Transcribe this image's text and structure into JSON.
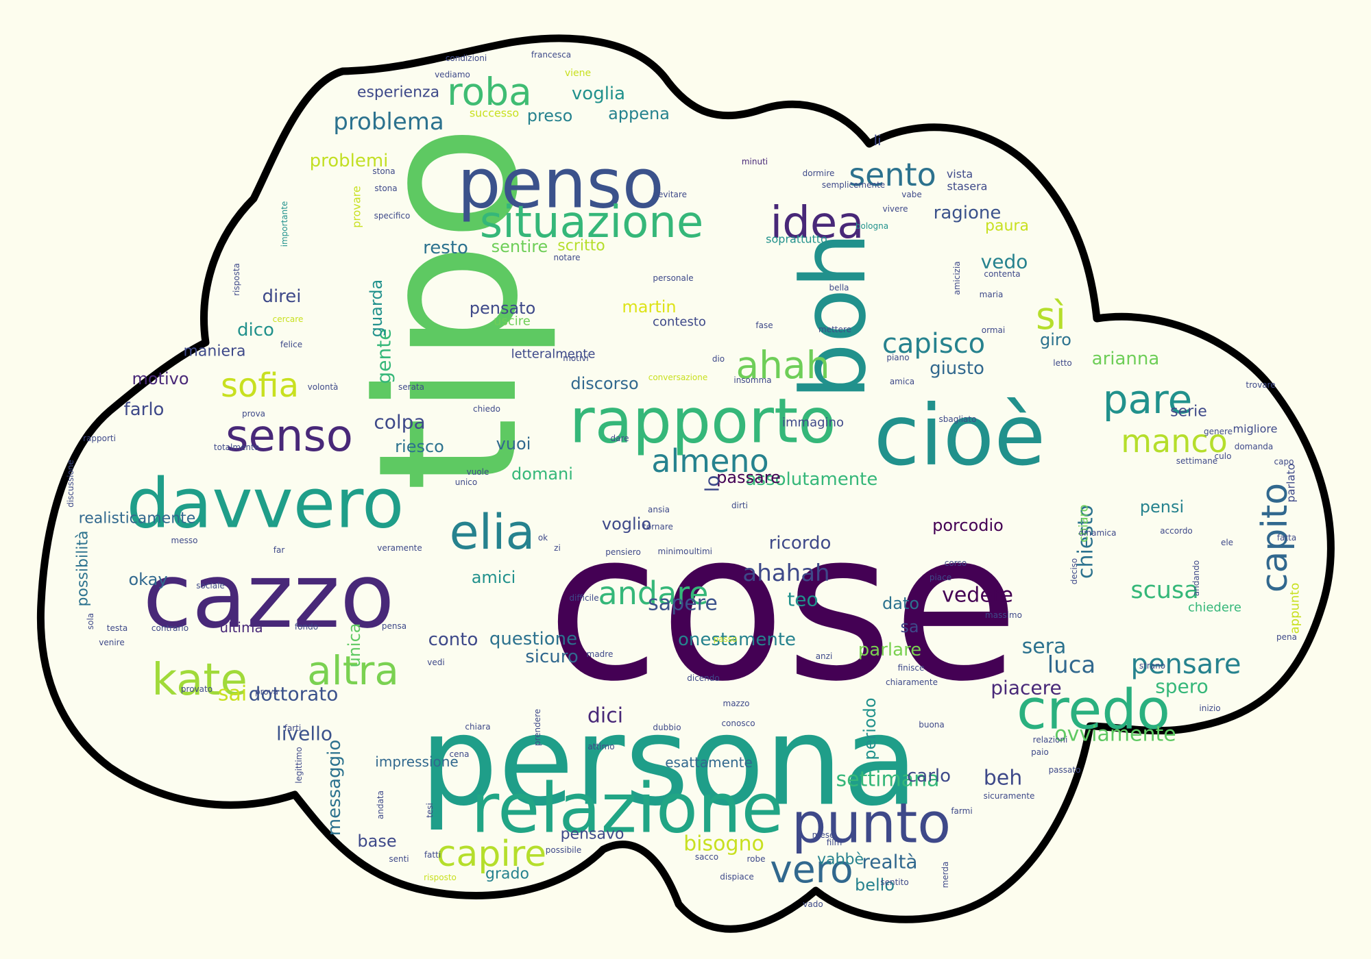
{
  "palette": {
    "background": "#fdfdee",
    "cloud_fill": "#fcfdf0",
    "cloud_outline": "#000000",
    "viridis": [
      "#440154",
      "#482878",
      "#3e4989",
      "#31688e",
      "#26828e",
      "#1f9e89",
      "#35b779",
      "#6ece58",
      "#b5de2b",
      "#fde725"
    ]
  },
  "words": [
    {
      "text": "cose",
      "color": "#440154"
    },
    {
      "text": "tipo",
      "color": "#5ec962"
    },
    {
      "text": "persona",
      "color": "#1f9e89"
    },
    {
      "text": "cazzo",
      "color": "#482878"
    },
    {
      "text": "boh",
      "color": "#21918c"
    },
    {
      "text": "cioè",
      "color": "#21918c"
    },
    {
      "text": "penso",
      "color": "#3b528b"
    },
    {
      "text": "davvero",
      "color": "#1f9e89"
    },
    {
      "text": "relazione",
      "color": "#21a585"
    },
    {
      "text": "rapporto",
      "color": "#35b779"
    },
    {
      "text": "senso",
      "color": "#482878"
    },
    {
      "text": "situazione",
      "color": "#35b779"
    },
    {
      "text": "credo",
      "color": "#2ab07f"
    },
    {
      "text": "punto",
      "color": "#3e4989"
    },
    {
      "text": "idea",
      "color": "#482878"
    },
    {
      "text": "elia",
      "color": "#26828e"
    },
    {
      "text": "kate",
      "color": "#a0da39"
    },
    {
      "text": "altra",
      "color": "#7ad151"
    },
    {
      "text": "andare",
      "color": "#35b779"
    },
    {
      "text": "pare",
      "color": "#21918c"
    },
    {
      "text": "almeno",
      "color": "#26828e"
    },
    {
      "text": "capito",
      "color": "#31688e"
    },
    {
      "text": "manco",
      "color": "#b5de2b"
    },
    {
      "text": "roba",
      "color": "#3fbc73"
    },
    {
      "text": "sento",
      "color": "#2c728e"
    },
    {
      "text": "ahah",
      "color": "#6ece58"
    },
    {
      "text": "sofia",
      "color": "#c8e020"
    },
    {
      "text": "sì",
      "color": "#b5de2b"
    },
    {
      "text": "capire",
      "color": "#b5de2b"
    },
    {
      "text": "vero",
      "color": "#31688e"
    },
    {
      "text": "ahahah",
      "color": "#3e4989"
    },
    {
      "text": "capisco",
      "color": "#26828e"
    },
    {
      "text": "pensare",
      "color": "#26828e"
    },
    {
      "text": "scusa",
      "color": "#35b779"
    },
    {
      "text": "problema",
      "color": "#2c728e"
    },
    {
      "text": "problemi",
      "color": "#c2df23"
    },
    {
      "text": "ragione",
      "color": "#3b528b"
    },
    {
      "text": "martin",
      "color": "#dde318"
    },
    {
      "text": "vedere",
      "color": "#440154"
    },
    {
      "text": "sapere",
      "color": "#3b528b"
    },
    {
      "text": "sera",
      "color": "#2c728e"
    },
    {
      "text": "luca",
      "color": "#31688e"
    },
    {
      "text": "dici",
      "color": "#482878"
    },
    {
      "text": "settimana",
      "color": "#35b779"
    },
    {
      "text": "ovviamente",
      "color": "#5ec962"
    },
    {
      "text": "bisogno",
      "color": "#c8e020"
    },
    {
      "text": "vedo",
      "color": "#26828e"
    },
    {
      "text": "arianna",
      "color": "#6ece58"
    },
    {
      "text": "voglia",
      "color": "#21918c"
    },
    {
      "text": "colpa",
      "color": "#3e4989"
    },
    {
      "text": "chiesto",
      "color": "#2c728e"
    },
    {
      "text": "spero",
      "color": "#35b779"
    },
    {
      "text": "realtà",
      "color": "#31688e"
    },
    {
      "text": "piacere",
      "color": "#482878"
    },
    {
      "text": "livello",
      "color": "#3b528b"
    },
    {
      "text": "dottorato",
      "color": "#3b528b"
    },
    {
      "text": "questione",
      "color": "#2c728e"
    },
    {
      "text": "conto",
      "color": "#3e4989"
    },
    {
      "text": "sai",
      "color": "#c8e020"
    },
    {
      "text": "parlare",
      "color": "#7ad151"
    },
    {
      "text": "onestamente",
      "color": "#26828e"
    },
    {
      "text": "sicuro",
      "color": "#31688e"
    },
    {
      "text": "amici",
      "color": "#21918c"
    },
    {
      "text": "okay",
      "color": "#31688e"
    },
    {
      "text": "voglio",
      "color": "#3e4989"
    },
    {
      "text": "ricordo",
      "color": "#3e4989"
    },
    {
      "text": "porcodio",
      "color": "#440154"
    },
    {
      "text": "pensi",
      "color": "#26828e"
    },
    {
      "text": "assolutamente",
      "color": "#35b779"
    },
    {
      "text": "passare",
      "color": "#440154"
    },
    {
      "text": "domani",
      "color": "#35b779"
    },
    {
      "text": "vuoi",
      "color": "#31688e"
    },
    {
      "text": "riesco",
      "color": "#2c728e"
    },
    {
      "text": "farlo",
      "color": "#3e4989"
    },
    {
      "text": "motivo",
      "color": "#482878"
    },
    {
      "text": "dico",
      "color": "#21918c"
    },
    {
      "text": "direi",
      "color": "#3e4989"
    },
    {
      "text": "gente",
      "color": "#35b779"
    },
    {
      "text": "resto",
      "color": "#2c728e"
    },
    {
      "text": "sentire",
      "color": "#6ece58"
    },
    {
      "text": "scritto",
      "color": "#b5de2b"
    },
    {
      "text": "preso",
      "color": "#26828e"
    },
    {
      "text": "appena",
      "color": "#26828e"
    },
    {
      "text": "esperienza",
      "color": "#3e4989"
    },
    {
      "text": "pensato",
      "color": "#3e4989"
    },
    {
      "text": "giusto",
      "color": "#31688e"
    },
    {
      "text": "discorso",
      "color": "#31688e"
    },
    {
      "text": "giro",
      "color": "#2c728e"
    },
    {
      "text": "paura",
      "color": "#c8e020"
    },
    {
      "text": "lo",
      "color": "#3e4989"
    },
    {
      "text": "dato",
      "color": "#2c728e"
    },
    {
      "text": "teo",
      "color": "#21918c"
    },
    {
      "text": "beh",
      "color": "#3e4989"
    },
    {
      "text": "carlo",
      "color": "#3e4989"
    },
    {
      "text": "pensavo",
      "color": "#3e4989"
    },
    {
      "text": "grado",
      "color": "#26828e"
    },
    {
      "text": "base",
      "color": "#3e4989"
    },
    {
      "text": "maniera",
      "color": "#3e4989"
    },
    {
      "text": "unica",
      "color": "#5ec962"
    },
    {
      "text": "messaggio",
      "color": "#2c728e"
    },
    {
      "text": "vabbè",
      "color": "#26828e"
    },
    {
      "text": "bello",
      "color": "#26828e"
    },
    {
      "text": "guarda",
      "color": "#21918c"
    },
    {
      "text": "realisticamente",
      "color": "#31688e"
    },
    {
      "text": "possibilità",
      "color": "#2c728e"
    },
    {
      "text": "ultima",
      "color": "#482878"
    },
    {
      "text": "sa",
      "color": "#3e4989"
    },
    {
      "text": "impressione",
      "color": "#31688e"
    },
    {
      "text": "esattamente",
      "color": "#31688e"
    },
    {
      "text": "periodo",
      "color": "#21918c"
    },
    {
      "text": "li",
      "color": "#3e4989"
    },
    {
      "text": "serie",
      "color": "#3e4989"
    },
    {
      "text": "appunto",
      "color": "#c8e020"
    },
    {
      "text": "chiedere",
      "color": "#35b779"
    },
    {
      "text": "contesto",
      "color": "#3e4989"
    },
    {
      "text": "uscire",
      "color": "#6ece58"
    },
    {
      "text": "letteralmente",
      "color": "#3e4989"
    },
    {
      "text": "immagino",
      "color": "#3e4989"
    },
    {
      "text": "migliore",
      "color": "#3e4989"
    },
    {
      "text": "soprattutto",
      "color": "#21918c"
    },
    {
      "text": "parlato",
      "color": "#3e4989"
    },
    {
      "text": "successo",
      "color": "#c8e020"
    },
    {
      "text": "chiaro",
      "color": "#6ece58"
    },
    {
      "text": "vista",
      "color": "#3e4989"
    },
    {
      "text": "stasera",
      "color": "#3e4989"
    },
    {
      "text": "minuti",
      "color": "#482878"
    },
    {
      "text": "semplicemente",
      "color": "#3e4989"
    },
    {
      "text": "dormire",
      "color": "#3e4989"
    },
    {
      "text": "evitare",
      "color": "#3e4989"
    },
    {
      "text": "vabe",
      "color": "#3e4989"
    },
    {
      "text": "vivere",
      "color": "#3e4989"
    },
    {
      "text": "bologna",
      "color": "#21918c"
    },
    {
      "text": "stona",
      "color": "#3e4989"
    },
    {
      "text": "specifico",
      "color": "#3e4989"
    },
    {
      "text": "importante",
      "color": "#21918c"
    },
    {
      "text": "provare",
      "color": "#c8e020"
    },
    {
      "text": "viene",
      "color": "#c8e020"
    },
    {
      "text": "francesca",
      "color": "#3e4989"
    },
    {
      "text": "condizioni",
      "color": "#3e4989"
    },
    {
      "text": "vediamo",
      "color": "#3e4989"
    },
    {
      "text": "notare",
      "color": "#3e4989"
    },
    {
      "text": "personale",
      "color": "#3e4989"
    },
    {
      "text": "bella",
      "color": "#3e4989"
    },
    {
      "text": "amicizia",
      "color": "#3e4989"
    },
    {
      "text": "contenta",
      "color": "#3e4989"
    },
    {
      "text": "maria",
      "color": "#3e4989"
    },
    {
      "text": "mettere",
      "color": "#3e4989"
    },
    {
      "text": "ormai",
      "color": "#3e4989"
    },
    {
      "text": "fase",
      "color": "#3e4989"
    },
    {
      "text": "dio",
      "color": "#3e4989"
    },
    {
      "text": "motivi",
      "color": "#3e4989"
    },
    {
      "text": "piano",
      "color": "#3e4989"
    },
    {
      "text": "letto",
      "color": "#3e4989"
    },
    {
      "text": "amica",
      "color": "#3e4989"
    },
    {
      "text": "insomma",
      "color": "#3e4989"
    },
    {
      "text": "conversazione",
      "color": "#c8e020"
    },
    {
      "text": "serata",
      "color": "#3e4989"
    },
    {
      "text": "volontà",
      "color": "#3e4989"
    },
    {
      "text": "felice",
      "color": "#3e4989"
    },
    {
      "text": "cercare",
      "color": "#c8e020"
    },
    {
      "text": "risposta",
      "color": "#3e4989"
    },
    {
      "text": "prova",
      "color": "#3e4989"
    },
    {
      "text": "chiedo",
      "color": "#3e4989"
    },
    {
      "text": "totalmente",
      "color": "#3e4989"
    },
    {
      "text": "rapporti",
      "color": "#3e4989"
    },
    {
      "text": "discussione",
      "color": "#3e4989"
    },
    {
      "text": "messo",
      "color": "#3e4989"
    },
    {
      "text": "far",
      "color": "#3e4989"
    },
    {
      "text": "sociale",
      "color": "#3e4989"
    },
    {
      "text": "sola",
      "color": "#3e4989"
    },
    {
      "text": "testa",
      "color": "#3e4989"
    },
    {
      "text": "venire",
      "color": "#3e4989"
    },
    {
      "text": "contrario",
      "color": "#3e4989"
    },
    {
      "text": "fondo",
      "color": "#3e4989"
    },
    {
      "text": "provato",
      "color": "#3e4989"
    },
    {
      "text": "farti",
      "color": "#3e4989"
    },
    {
      "text": "legittimo",
      "color": "#3e4989"
    },
    {
      "text": "cena",
      "color": "#3e4989"
    },
    {
      "text": "andata",
      "color": "#3e4989"
    },
    {
      "text": "tesi",
      "color": "#3e4989"
    },
    {
      "text": "fatti",
      "color": "#3e4989"
    },
    {
      "text": "possibile",
      "color": "#3e4989"
    },
    {
      "text": "senti",
      "color": "#3e4989"
    },
    {
      "text": "risposto",
      "color": "#c8e020"
    },
    {
      "text": "chiara",
      "color": "#3e4989"
    },
    {
      "text": "attimo",
      "color": "#3e4989"
    },
    {
      "text": "prendere",
      "color": "#3e4989"
    },
    {
      "text": "dubbio",
      "color": "#3e4989"
    },
    {
      "text": "mazzo",
      "color": "#3e4989"
    },
    {
      "text": "conosco",
      "color": "#3e4989"
    },
    {
      "text": "dicendo",
      "color": "#3e4989"
    },
    {
      "text": "madre",
      "color": "#3e4989"
    },
    {
      "text": "vedi",
      "color": "#3e4989"
    },
    {
      "text": "pensa",
      "color": "#3e4989"
    },
    {
      "text": "passo",
      "color": "#c8e020"
    },
    {
      "text": "anzi",
      "color": "#3e4989"
    },
    {
      "text": "finisce",
      "color": "#3e4989"
    },
    {
      "text": "chiaramente",
      "color": "#3e4989"
    },
    {
      "text": "strano",
      "color": "#3e4989"
    },
    {
      "text": "inizio",
      "color": "#3e4989"
    },
    {
      "text": "relazioni",
      "color": "#3e4989"
    },
    {
      "text": "paio",
      "color": "#3e4989"
    },
    {
      "text": "buona",
      "color": "#3e4989"
    },
    {
      "text": "massimo",
      "color": "#3e4989"
    },
    {
      "text": "corso",
      "color": "#3e4989"
    },
    {
      "text": "piace",
      "color": "#3e4989"
    },
    {
      "text": "deciso",
      "color": "#3e4989"
    },
    {
      "text": "fatta",
      "color": "#3e4989"
    },
    {
      "text": "pena",
      "color": "#3e4989"
    },
    {
      "text": "andando",
      "color": "#3e4989"
    },
    {
      "text": "ele",
      "color": "#3e4989"
    },
    {
      "text": "accordo",
      "color": "#3e4989"
    },
    {
      "text": "dinamica",
      "color": "#3e4989"
    },
    {
      "text": "capo",
      "color": "#3e4989"
    },
    {
      "text": "culo",
      "color": "#3e4989"
    },
    {
      "text": "domanda",
      "color": "#3e4989"
    },
    {
      "text": "genere",
      "color": "#3e4989"
    },
    {
      "text": "sbagliato",
      "color": "#3e4989"
    },
    {
      "text": "trovare",
      "color": "#3e4989"
    },
    {
      "text": "settimane",
      "color": "#3e4989"
    },
    {
      "text": "dirti",
      "color": "#3e4989"
    },
    {
      "text": "ansia",
      "color": "#3e4989"
    },
    {
      "text": "tornare",
      "color": "#3e4989"
    },
    {
      "text": "pensiero",
      "color": "#3e4989"
    },
    {
      "text": "minimo",
      "color": "#3e4989"
    },
    {
      "text": "ultimi",
      "color": "#3e4989"
    },
    {
      "text": "vuole",
      "color": "#3e4989"
    },
    {
      "text": "unico",
      "color": "#3e4989"
    },
    {
      "text": "ok",
      "color": "#3e4989"
    },
    {
      "text": "zi",
      "color": "#3e4989"
    },
    {
      "text": "difficile",
      "color": "#3e4989"
    },
    {
      "text": "dare",
      "color": "#3e4989"
    },
    {
      "text": "veramente",
      "color": "#3e4989"
    },
    {
      "text": "sentito",
      "color": "#3e4989"
    },
    {
      "text": "merda",
      "color": "#3e4989"
    },
    {
      "text": "vado",
      "color": "#3e4989"
    },
    {
      "text": "dispiace",
      "color": "#3e4989"
    },
    {
      "text": "sacco",
      "color": "#3e4989"
    },
    {
      "text": "robe",
      "color": "#3e4989"
    },
    {
      "text": "mese",
      "color": "#3e4989"
    },
    {
      "text": "film",
      "color": "#3e4989"
    },
    {
      "text": "farmi",
      "color": "#3e4989"
    },
    {
      "text": "sicuramente",
      "color": "#3e4989"
    },
    {
      "text": "passato",
      "color": "#3e4989"
    },
    {
      "text": "stona",
      "color": "#3e4989"
    },
    {
      "text": "prova",
      "color": "#3e4989"
    }
  ]
}
